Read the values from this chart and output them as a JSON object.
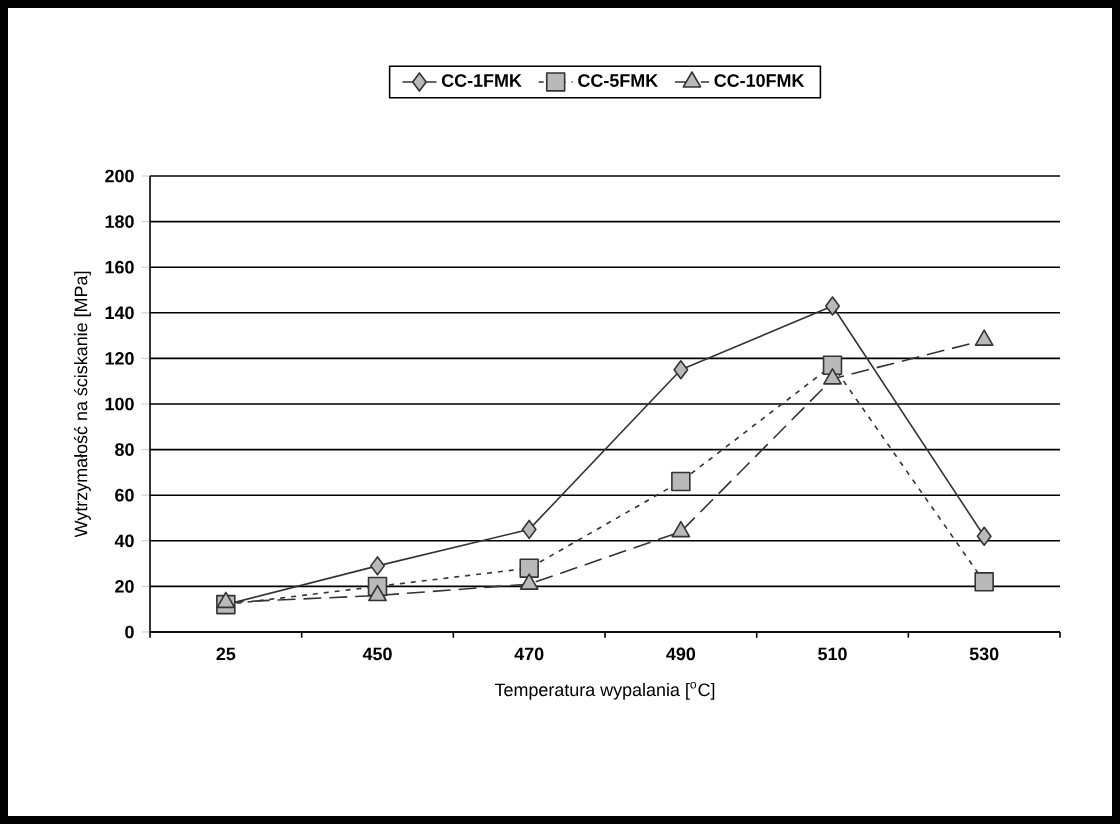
{
  "chart_data": {
    "type": "line",
    "xlabel": "Temperatura wypalania [$^{o}$C]",
    "ylabel": "Wytrzymałość na ściskanie [MPa]",
    "categories": [
      "25",
      "450",
      "470",
      "490",
      "510",
      "530"
    ],
    "series": [
      {
        "name": "CC-1FMK",
        "color": "#333333",
        "marker": "diamond",
        "line_style": "solid",
        "values": [
          12,
          29,
          45,
          115,
          143,
          42
        ]
      },
      {
        "name": "CC-5FMK",
        "color": "#333333",
        "marker": "square",
        "line_style": "dotted",
        "values": [
          12,
          20,
          28,
          66,
          117,
          22
        ]
      },
      {
        "name": "CC-10FMK",
        "color": "#333333",
        "marker": "triangle",
        "line_style": "dashed",
        "values": [
          13,
          16,
          21,
          44,
          111,
          128
        ]
      }
    ],
    "ylim": [
      0,
      200
    ],
    "yticks": [
      0,
      20,
      40,
      60,
      80,
      100,
      120,
      140,
      160,
      180,
      200
    ],
    "grid": "y",
    "legend": "top"
  }
}
